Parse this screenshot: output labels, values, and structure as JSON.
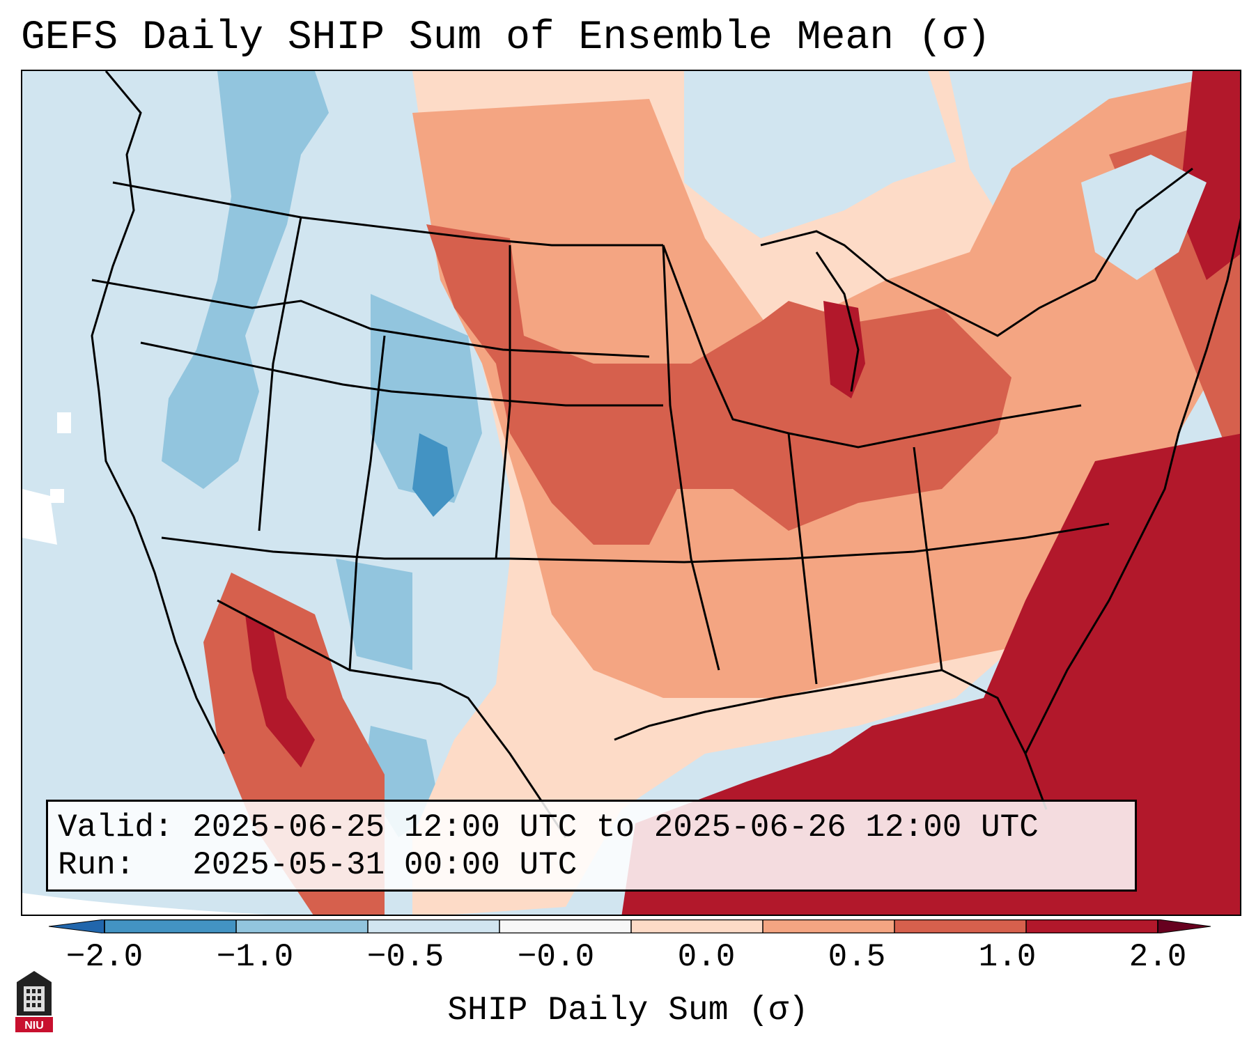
{
  "title": "GEFS Daily SHIP Sum of Ensemble Mean (σ)",
  "info": {
    "valid_line": "Valid: 2025-06-25 12:00 UTC to 2025-06-26 12:00 UTC",
    "run_line": "Run:   2025-05-31 00:00 UTC"
  },
  "colorbar": {
    "label": "SHIP Daily Sum (σ)",
    "ticks": [
      "−2.0",
      "−1.0",
      "−0.5",
      "−0.0",
      "0.0",
      "0.5",
      "1.0",
      "2.0"
    ],
    "colors": [
      "#4393c3",
      "#92c5de",
      "#d1e5f0",
      "#f7f7f7",
      "#fddbc7",
      "#f4a582",
      "#d6604d",
      "#b2182b"
    ]
  },
  "logo_text": "NIU"
}
